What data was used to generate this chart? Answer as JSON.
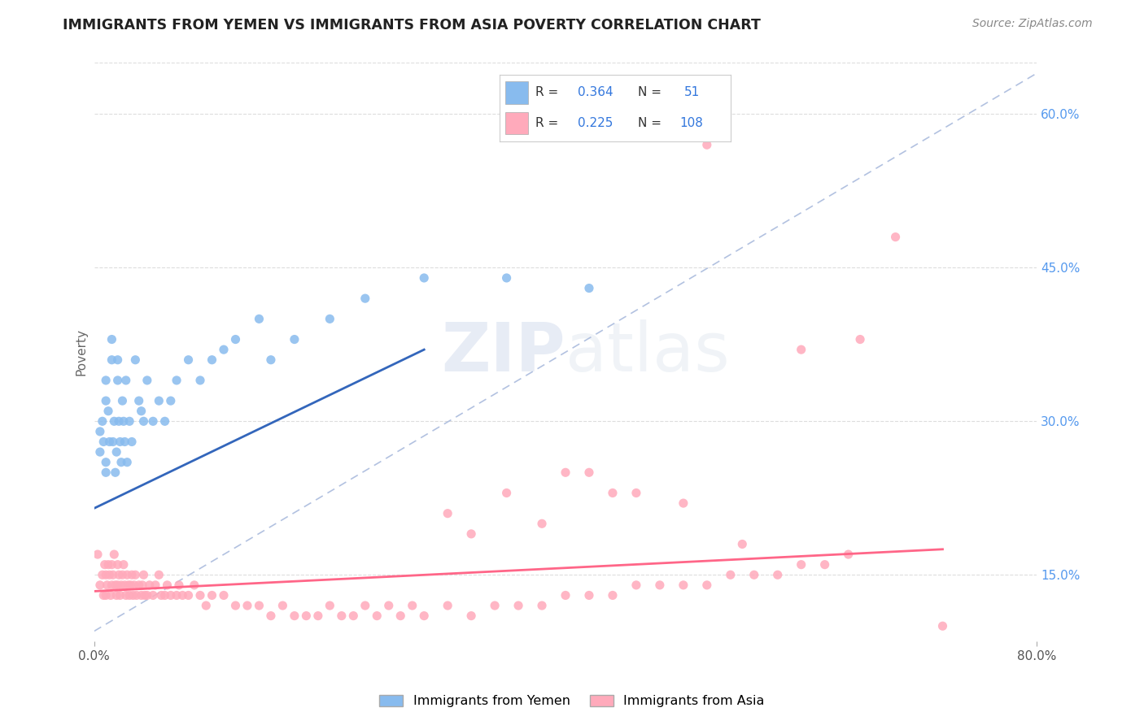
{
  "title": "IMMIGRANTS FROM YEMEN VS IMMIGRANTS FROM ASIA POVERTY CORRELATION CHART",
  "source": "Source: ZipAtlas.com",
  "ylabel": "Poverty",
  "xlim": [
    0.0,
    0.8
  ],
  "ylim": [
    0.085,
    0.65
  ],
  "ytick_right_labels": [
    "60.0%",
    "45.0%",
    "30.0%",
    "15.0%"
  ],
  "ytick_right_values": [
    0.6,
    0.45,
    0.3,
    0.15
  ],
  "color_yemen": "#88BBEE",
  "color_asia": "#FFAABB",
  "color_line_yemen": "#3366BB",
  "color_line_asia": "#FF6688",
  "color_diag": "#AABBDD",
  "title_color": "#222222",
  "source_color": "#888888",
  "background_color": "#FFFFFF",
  "grid_color": "#DDDDDD",
  "watermark_text": "ZIPatlas",
  "legend_label1": "R = 0.364   N =   51",
  "legend_label2": "R = 0.225   N = 108",
  "bottom_label1": "Immigrants from Yemen",
  "bottom_label2": "Immigrants from Asia",
  "yemen_x": [
    0.005,
    0.005,
    0.007,
    0.008,
    0.01,
    0.01,
    0.01,
    0.01,
    0.012,
    0.013,
    0.015,
    0.015,
    0.016,
    0.017,
    0.018,
    0.019,
    0.02,
    0.02,
    0.021,
    0.022,
    0.023,
    0.024,
    0.025,
    0.026,
    0.027,
    0.028,
    0.03,
    0.032,
    0.035,
    0.038,
    0.04,
    0.042,
    0.045,
    0.05,
    0.055,
    0.06,
    0.065,
    0.07,
    0.08,
    0.09,
    0.1,
    0.11,
    0.12,
    0.14,
    0.15,
    0.17,
    0.2,
    0.23,
    0.28,
    0.35,
    0.42
  ],
  "yemen_y": [
    0.27,
    0.29,
    0.3,
    0.28,
    0.32,
    0.34,
    0.25,
    0.26,
    0.31,
    0.28,
    0.36,
    0.38,
    0.28,
    0.3,
    0.25,
    0.27,
    0.36,
    0.34,
    0.3,
    0.28,
    0.26,
    0.32,
    0.3,
    0.28,
    0.34,
    0.26,
    0.3,
    0.28,
    0.36,
    0.32,
    0.31,
    0.3,
    0.34,
    0.3,
    0.32,
    0.3,
    0.32,
    0.34,
    0.36,
    0.34,
    0.36,
    0.37,
    0.38,
    0.4,
    0.36,
    0.38,
    0.4,
    0.42,
    0.44,
    0.44,
    0.43
  ],
  "asia_x": [
    0.003,
    0.005,
    0.007,
    0.008,
    0.009,
    0.01,
    0.01,
    0.011,
    0.012,
    0.013,
    0.014,
    0.015,
    0.015,
    0.016,
    0.017,
    0.018,
    0.019,
    0.02,
    0.02,
    0.021,
    0.022,
    0.023,
    0.024,
    0.025,
    0.026,
    0.027,
    0.028,
    0.029,
    0.03,
    0.031,
    0.032,
    0.033,
    0.034,
    0.035,
    0.036,
    0.038,
    0.04,
    0.041,
    0.042,
    0.043,
    0.045,
    0.047,
    0.05,
    0.052,
    0.055,
    0.057,
    0.06,
    0.062,
    0.065,
    0.07,
    0.072,
    0.075,
    0.08,
    0.085,
    0.09,
    0.095,
    0.1,
    0.11,
    0.12,
    0.13,
    0.14,
    0.15,
    0.16,
    0.17,
    0.18,
    0.19,
    0.2,
    0.21,
    0.22,
    0.23,
    0.24,
    0.25,
    0.26,
    0.27,
    0.28,
    0.3,
    0.32,
    0.34,
    0.36,
    0.38,
    0.4,
    0.42,
    0.44,
    0.46,
    0.48,
    0.5,
    0.52,
    0.54,
    0.56,
    0.58,
    0.6,
    0.62,
    0.64,
    0.4,
    0.44,
    0.5,
    0.52,
    0.6,
    0.65,
    0.68,
    0.3,
    0.32,
    0.35,
    0.38,
    0.42,
    0.46,
    0.55,
    0.72
  ],
  "asia_y": [
    0.17,
    0.14,
    0.15,
    0.13,
    0.16,
    0.13,
    0.15,
    0.14,
    0.16,
    0.15,
    0.13,
    0.14,
    0.16,
    0.15,
    0.17,
    0.14,
    0.13,
    0.14,
    0.16,
    0.15,
    0.13,
    0.14,
    0.15,
    0.16,
    0.14,
    0.13,
    0.15,
    0.14,
    0.13,
    0.14,
    0.15,
    0.13,
    0.14,
    0.15,
    0.13,
    0.14,
    0.13,
    0.14,
    0.15,
    0.13,
    0.13,
    0.14,
    0.13,
    0.14,
    0.15,
    0.13,
    0.13,
    0.14,
    0.13,
    0.13,
    0.14,
    0.13,
    0.13,
    0.14,
    0.13,
    0.12,
    0.13,
    0.13,
    0.12,
    0.12,
    0.12,
    0.11,
    0.12,
    0.11,
    0.11,
    0.11,
    0.12,
    0.11,
    0.11,
    0.12,
    0.11,
    0.12,
    0.11,
    0.12,
    0.11,
    0.12,
    0.11,
    0.12,
    0.12,
    0.12,
    0.13,
    0.13,
    0.13,
    0.14,
    0.14,
    0.14,
    0.14,
    0.15,
    0.15,
    0.15,
    0.16,
    0.16,
    0.17,
    0.25,
    0.23,
    0.22,
    0.57,
    0.37,
    0.38,
    0.48,
    0.21,
    0.19,
    0.23,
    0.2,
    0.25,
    0.23,
    0.18,
    0.1
  ]
}
